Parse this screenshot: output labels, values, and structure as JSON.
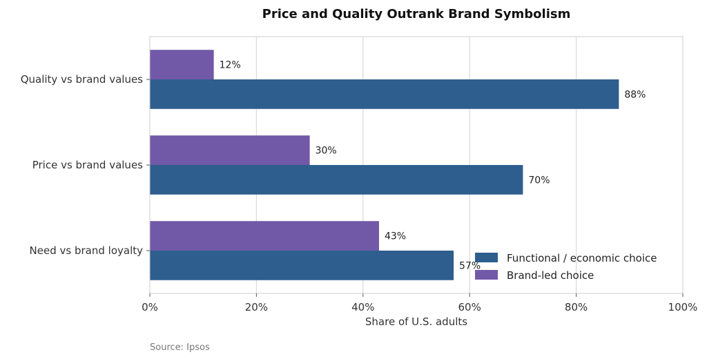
{
  "chart_data": {
    "type": "bar",
    "orientation": "horizontal",
    "title": "Price and Quality Outrank Brand Symbolism",
    "categories": [
      "Quality vs brand values",
      "Price vs brand values",
      "Need vs brand loyalty"
    ],
    "series": [
      {
        "name": "Functional / economic choice",
        "values": [
          88,
          70,
          57
        ],
        "labels": [
          "88%",
          "70%",
          "57%"
        ],
        "color": "#2e5e8e"
      },
      {
        "name": "Brand-led choice",
        "values": [
          12,
          30,
          43
        ],
        "labels": [
          "12%",
          "30%",
          "43%"
        ],
        "color": "#7159a8"
      }
    ],
    "xlabel": "Share of U.S. adults",
    "ylabel": "",
    "xlim": [
      0,
      100
    ],
    "xticks": [
      0,
      20,
      40,
      60,
      80,
      100
    ],
    "xtick_labels": [
      "0%",
      "20%",
      "40%",
      "60%",
      "80%",
      "100%"
    ],
    "grid": "vertical",
    "legend_position": "lower-right",
    "source": "Source: Ipsos"
  }
}
